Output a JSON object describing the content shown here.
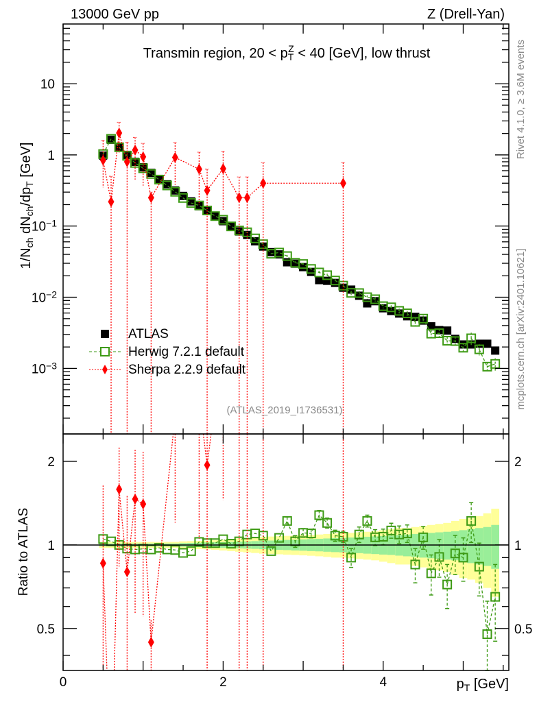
{
  "header": {
    "left": "13000 GeV pp",
    "right": "Z (Drell-Yan)"
  },
  "side_text": {
    "rivet": "Rivet 4.1.0, ≥ 3.6M events",
    "mcplots": "mcplots.cern.ch [arXiv:2401.10621]"
  },
  "analysis_id": "(ATLAS_2019_I1736531)",
  "chart_data": {
    "type": "scatter",
    "title_parts": [
      {
        "t": "Transmin region, 20 < p",
        "s": ""
      },
      {
        "t": "T",
        "s": "sub"
      },
      {
        "t": "Z",
        "s": "sup"
      },
      {
        "t": " < 40 [GeV], low thrust",
        "s": ""
      }
    ],
    "ylabel_parts": [
      {
        "t": "1/N",
        "s": ""
      },
      {
        "t": "ch",
        "s": "sub"
      },
      {
        "t": " dN",
        "s": ""
      },
      {
        "t": "ch",
        "s": "sub"
      },
      {
        "t": "/dp",
        "s": ""
      },
      {
        "t": "T",
        "s": "sub"
      },
      {
        "t": " [GeV]",
        "s": ""
      }
    ],
    "xlabel_parts": [
      {
        "t": "p",
        "s": ""
      },
      {
        "t": "T",
        "s": "sub"
      },
      {
        "t": " [GeV]",
        "s": ""
      }
    ],
    "ratio_ylabel": "Ratio to ATLAS",
    "xlim": [
      0,
      5.57
    ],
    "ylim": [
      0.00012,
      69
    ],
    "yscale": "log",
    "ratio_ylim": [
      0.353,
      2.51
    ],
    "ratio_yscale": "log",
    "x_ticks": [
      {
        "v": 0,
        "label": "0"
      },
      {
        "v": 2,
        "label": "2"
      },
      {
        "v": 4,
        "label": "4"
      }
    ],
    "y_ticks": [
      {
        "v": 10,
        "base": "10",
        "exp": ""
      },
      {
        "v": 1,
        "base": "1",
        "exp": ""
      },
      {
        "v": 0.1,
        "base": "10",
        "exp": "−1"
      },
      {
        "v": 0.01,
        "base": "10",
        "exp": "−2"
      },
      {
        "v": 0.001,
        "base": "10",
        "exp": "−3"
      }
    ],
    "ratio_ticks": [
      {
        "v": 2,
        "label": "2"
      },
      {
        "v": 1,
        "label": "1"
      },
      {
        "v": 0.5,
        "label": "0.5"
      }
    ],
    "legend": {
      "placement": "lower-left",
      "entries": [
        "ATLAS",
        "Herwig 7.2.1 default",
        "Sherpa 2.2.9 default"
      ]
    },
    "colors": {
      "atlas": "#000000",
      "herwig": "#3d9a14",
      "sherpa": "#ff0000",
      "band_total": "#ffff99",
      "band_stat": "#99ee99"
    },
    "x": [
      0.5,
      0.6,
      0.7,
      0.8,
      0.9,
      1.0,
      1.1,
      1.2,
      1.3,
      1.4,
      1.5,
      1.6,
      1.7,
      1.8,
      1.9,
      2.0,
      2.1,
      2.2,
      2.3,
      2.4,
      2.5,
      2.6,
      2.7,
      2.8,
      2.9,
      3.0,
      3.1,
      3.2,
      3.3,
      3.4,
      3.5,
      3.6,
      3.7,
      3.8,
      3.9,
      4.0,
      4.1,
      4.2,
      4.3,
      4.4,
      4.5,
      4.6,
      4.7,
      4.8,
      4.9,
      5.0,
      5.1,
      5.2,
      5.3,
      5.4
    ],
    "atlas": [
      0.978,
      1.63,
      1.28,
      1.0,
      0.8,
      0.67,
      0.56,
      0.46,
      0.386,
      0.316,
      0.265,
      0.222,
      0.19,
      0.163,
      0.136,
      0.117,
      0.098,
      0.084,
      0.075,
      0.061,
      0.0515,
      0.043,
      0.04,
      0.031,
      0.0296,
      0.0265,
      0.0227,
      0.0174,
      0.017,
      0.0159,
      0.0136,
      0.0128,
      0.0105,
      0.0082,
      0.0088,
      0.007,
      0.0064,
      0.0059,
      0.0054,
      0.0053,
      0.0047,
      0.0039,
      0.00345,
      0.0034,
      0.0026,
      0.00217,
      0.00217,
      0.00222,
      0.00222,
      0.00178
    ],
    "atlas_stat_frac": [
      0.012,
      0.012,
      0.012,
      0.012,
      0.012,
      0.012,
      0.012,
      0.012,
      0.012,
      0.012,
      0.015,
      0.016,
      0.018,
      0.02,
      0.022,
      0.024,
      0.026,
      0.028,
      0.03,
      0.032,
      0.035,
      0.037,
      0.04,
      0.042,
      0.045,
      0.047,
      0.05,
      0.052,
      0.055,
      0.058,
      0.06,
      0.063,
      0.066,
      0.07,
      0.073,
      0.077,
      0.08,
      0.085,
      0.09,
      0.095,
      0.1,
      0.105,
      0.11,
      0.115,
      0.12,
      0.13,
      0.14,
      0.15,
      0.16,
      0.18
    ],
    "atlas_total_frac": [
      0.025,
      0.025,
      0.025,
      0.025,
      0.025,
      0.025,
      0.025,
      0.025,
      0.025,
      0.025,
      0.03,
      0.032,
      0.034,
      0.036,
      0.04,
      0.045,
      0.05,
      0.055,
      0.06,
      0.065,
      0.07,
      0.072,
      0.075,
      0.078,
      0.08,
      0.083,
      0.086,
      0.09,
      0.095,
      0.1,
      0.1,
      0.105,
      0.11,
      0.115,
      0.12,
      0.13,
      0.14,
      0.15,
      0.15,
      0.16,
      0.17,
      0.18,
      0.19,
      0.2,
      0.22,
      0.24,
      0.25,
      0.27,
      0.3,
      0.35
    ],
    "herwig_ratio": [
      1.05,
      1.03,
      1.0,
      0.97,
      0.963,
      0.968,
      0.963,
      0.976,
      0.963,
      0.959,
      0.936,
      0.95,
      1.025,
      1.015,
      1.015,
      1.048,
      1.01,
      1.03,
      1.09,
      1.1,
      1.08,
      0.95,
      1.06,
      1.22,
      1.03,
      1.105,
      1.1,
      1.28,
      1.2,
      1.08,
      1.07,
      0.9,
      1.09,
      1.22,
      1.065,
      1.07,
      1.127,
      1.09,
      1.1,
      0.85,
      1.065,
      0.79,
      0.905,
      0.72,
      0.932,
      0.9,
      1.22,
      0.835,
      0.477,
      0.65
    ],
    "herwig_ratio_err": [
      0.01,
      0.01,
      0.01,
      0.01,
      0.01,
      0.01,
      0.01,
      0.01,
      0.01,
      0.01,
      0.012,
      0.012,
      0.012,
      0.012,
      0.012,
      0.015,
      0.015,
      0.015,
      0.02,
      0.02,
      0.025,
      0.03,
      0.03,
      0.04,
      0.05,
      0.04,
      0.04,
      0.05,
      0.05,
      0.05,
      0.05,
      0.07,
      0.07,
      0.06,
      0.07,
      0.07,
      0.07,
      0.08,
      0.08,
      0.12,
      0.1,
      0.13,
      0.14,
      0.13,
      0.15,
      0.16,
      0.2,
      0.18,
      0.15,
      0.2
    ],
    "sherpa": [
      {
        "x": 0.5,
        "y": 0.84,
        "lo": 0.35,
        "hi": 1.6
      },
      {
        "x": 0.6,
        "y": 0.22,
        "lo": 0,
        "hi": 0.5
      },
      {
        "x": 0.7,
        "y": 2.03,
        "lo": 1.07,
        "hi": 2.87
      },
      {
        "x": 0.8,
        "y": 0.8,
        "lo": 0,
        "hi": 1.5
      },
      {
        "x": 0.9,
        "y": 1.17,
        "lo": 0.45,
        "hi": 1.76
      },
      {
        "x": 1.0,
        "y": 0.94,
        "lo": 0.37,
        "hi": 1.45
      },
      {
        "x": 1.1,
        "y": 0.25,
        "lo": 0,
        "hi": 0.3
      },
      {
        "x": 1.4,
        "y": 0.92,
        "lo": 0.38,
        "hi": 1.49
      },
      {
        "x": 1.7,
        "y": 0.63,
        "lo": 0.2,
        "hi": 1.09
      },
      {
        "x": 1.8,
        "y": 0.316,
        "lo": 0,
        "hi": 0.63
      },
      {
        "x": 2.0,
        "y": 0.64,
        "lo": 0.17,
        "hi": 1.12
      },
      {
        "x": 2.2,
        "y": 0.25,
        "lo": 0,
        "hi": 0.49
      },
      {
        "x": 2.3,
        "y": 0.25,
        "lo": 0,
        "hi": 0.49
      },
      {
        "x": 2.5,
        "y": 0.4,
        "lo": 0,
        "hi": 0.78
      },
      {
        "x": 3.5,
        "y": 0.4,
        "lo": 0,
        "hi": 0.78
      }
    ]
  }
}
